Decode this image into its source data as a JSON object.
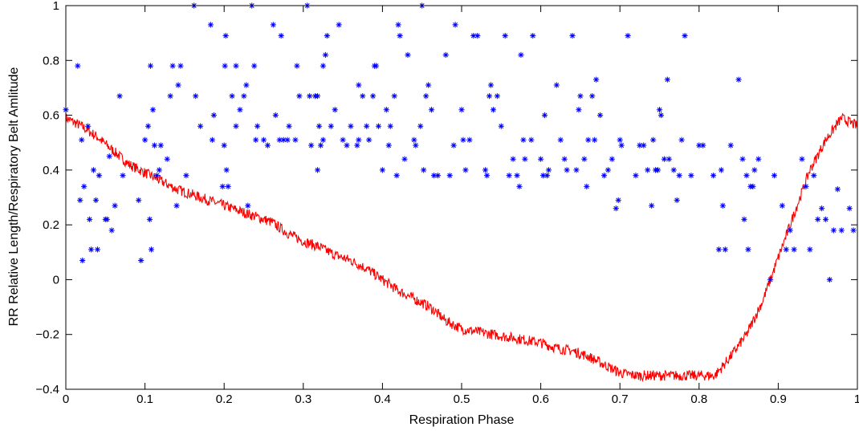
{
  "chart_data": {
    "type": "line+scatter",
    "title": "",
    "xlabel": "Respiration Phase",
    "ylabel": "RR Relative Length/Respiratory Belt Amlitude",
    "xlim": [
      0,
      1
    ],
    "ylim": [
      -0.4,
      1
    ],
    "xticks": [
      0,
      0.1,
      0.2,
      0.3,
      0.4,
      0.5,
      0.6,
      0.7,
      0.8,
      0.9,
      1
    ],
    "yticks": [
      -0.4,
      -0.2,
      0,
      0.2,
      0.4,
      0.6,
      0.8,
      1
    ],
    "xtick_labels": [
      "0",
      "0.1",
      "0.2",
      "0.3",
      "0.4",
      "0.5",
      "0.6",
      "0.7",
      "0.8",
      "0.9",
      "1"
    ],
    "ytick_labels": [
      "−0.4",
      "−0.2",
      "0",
      "0.2",
      "0.4",
      "0.6",
      "0.8",
      "1"
    ],
    "grid": false,
    "series": [
      {
        "kind": "line",
        "color": "#ff0000",
        "x": [
          0.0,
          0.02,
          0.04,
          0.06,
          0.08,
          0.1,
          0.12,
          0.14,
          0.16,
          0.18,
          0.2,
          0.22,
          0.24,
          0.26,
          0.28,
          0.3,
          0.32,
          0.34,
          0.36,
          0.38,
          0.4,
          0.42,
          0.44,
          0.46,
          0.48,
          0.5,
          0.52,
          0.54,
          0.56,
          0.58,
          0.6,
          0.62,
          0.64,
          0.66,
          0.68,
          0.7,
          0.72,
          0.74,
          0.76,
          0.78,
          0.8,
          0.82,
          0.84,
          0.86,
          0.88,
          0.9,
          0.92,
          0.94,
          0.96,
          0.98,
          1.0
        ],
        "y": [
          0.59,
          0.56,
          0.52,
          0.47,
          0.42,
          0.39,
          0.36,
          0.33,
          0.31,
          0.29,
          0.27,
          0.25,
          0.23,
          0.21,
          0.17,
          0.14,
          0.12,
          0.09,
          0.07,
          0.04,
          0.0,
          -0.04,
          -0.07,
          -0.1,
          -0.15,
          -0.18,
          -0.19,
          -0.2,
          -0.21,
          -0.22,
          -0.23,
          -0.25,
          -0.26,
          -0.28,
          -0.31,
          -0.34,
          -0.35,
          -0.35,
          -0.35,
          -0.35,
          -0.35,
          -0.35,
          -0.28,
          -0.2,
          -0.08,
          0.08,
          0.24,
          0.4,
          0.51,
          0.59,
          0.56
        ]
      },
      {
        "kind": "scatter",
        "marker": "*",
        "color": "#0000ff",
        "points": [
          [
            0.0,
            0.62
          ],
          [
            0.015,
            0.78
          ],
          [
            0.018,
            0.29
          ],
          [
            0.02,
            0.51
          ],
          [
            0.021,
            0.07
          ],
          [
            0.023,
            0.34
          ],
          [
            0.028,
            0.56
          ],
          [
            0.03,
            0.22
          ],
          [
            0.032,
            0.11
          ],
          [
            0.035,
            0.4
          ],
          [
            0.038,
            0.29
          ],
          [
            0.04,
            0.11
          ],
          [
            0.042,
            0.38
          ],
          [
            0.05,
            0.22
          ],
          [
            0.052,
            0.22
          ],
          [
            0.055,
            0.45
          ],
          [
            0.058,
            0.18
          ],
          [
            0.062,
            0.27
          ],
          [
            0.068,
            0.67
          ],
          [
            0.072,
            0.38
          ],
          [
            0.092,
            0.29
          ],
          [
            0.095,
            0.07
          ],
          [
            0.1,
            0.51
          ],
          [
            0.104,
            0.56
          ],
          [
            0.106,
            0.22
          ],
          [
            0.107,
            0.78
          ],
          [
            0.108,
            0.11
          ],
          [
            0.11,
            0.62
          ],
          [
            0.112,
            0.49
          ],
          [
            0.115,
            0.38
          ],
          [
            0.118,
            0.4
          ],
          [
            0.12,
            0.49
          ],
          [
            0.128,
            0.44
          ],
          [
            0.132,
            0.67
          ],
          [
            0.135,
            0.78
          ],
          [
            0.14,
            0.27
          ],
          [
            0.142,
            0.71
          ],
          [
            0.145,
            0.78
          ],
          [
            0.152,
            0.38
          ],
          [
            0.162,
            1.0
          ],
          [
            0.164,
            0.67
          ],
          [
            0.17,
            0.56
          ],
          [
            0.183,
            0.93
          ],
          [
            0.185,
            0.51
          ],
          [
            0.187,
            0.6
          ],
          [
            0.198,
            0.34
          ],
          [
            0.2,
            0.49
          ],
          [
            0.201,
            0.78
          ],
          [
            0.202,
            0.89
          ],
          [
            0.203,
            0.4
          ],
          [
            0.205,
            0.34
          ],
          [
            0.21,
            0.67
          ],
          [
            0.215,
            0.78
          ],
          [
            0.215,
            0.56
          ],
          [
            0.22,
            0.62
          ],
          [
            0.225,
            0.67
          ],
          [
            0.228,
            0.71
          ],
          [
            0.23,
            0.27
          ],
          [
            0.235,
            1.0
          ],
          [
            0.238,
            0.78
          ],
          [
            0.24,
            0.51
          ],
          [
            0.242,
            0.56
          ],
          [
            0.25,
            0.51
          ],
          [
            0.255,
            0.49
          ],
          [
            0.262,
            0.93
          ],
          [
            0.265,
            0.6
          ],
          [
            0.27,
            0.51
          ],
          [
            0.272,
            0.89
          ],
          [
            0.275,
            0.51
          ],
          [
            0.28,
            0.51
          ],
          [
            0.282,
            0.56
          ],
          [
            0.29,
            0.51
          ],
          [
            0.292,
            0.78
          ],
          [
            0.295,
            0.67
          ],
          [
            0.305,
            1.0
          ],
          [
            0.308,
            0.67
          ],
          [
            0.31,
            0.49
          ],
          [
            0.315,
            0.67
          ],
          [
            0.318,
            0.67
          ],
          [
            0.318,
            0.4
          ],
          [
            0.32,
            0.56
          ],
          [
            0.322,
            0.49
          ],
          [
            0.325,
            0.51
          ],
          [
            0.325,
            0.78
          ],
          [
            0.328,
            0.82
          ],
          [
            0.33,
            0.89
          ],
          [
            0.335,
            0.56
          ],
          [
            0.34,
            0.62
          ],
          [
            0.345,
            0.93
          ],
          [
            0.35,
            0.51
          ],
          [
            0.355,
            0.49
          ],
          [
            0.36,
            0.56
          ],
          [
            0.368,
            0.49
          ],
          [
            0.37,
            0.71
          ],
          [
            0.37,
            0.51
          ],
          [
            0.375,
            0.67
          ],
          [
            0.38,
            0.56
          ],
          [
            0.383,
            0.51
          ],
          [
            0.388,
            0.67
          ],
          [
            0.39,
            0.78
          ],
          [
            0.392,
            0.78
          ],
          [
            0.395,
            0.56
          ],
          [
            0.4,
            0.4
          ],
          [
            0.405,
            0.62
          ],
          [
            0.408,
            0.49
          ],
          [
            0.41,
            0.56
          ],
          [
            0.415,
            0.67
          ],
          [
            0.418,
            0.38
          ],
          [
            0.42,
            0.93
          ],
          [
            0.422,
            0.89
          ],
          [
            0.428,
            0.44
          ],
          [
            0.432,
            0.82
          ],
          [
            0.44,
            0.51
          ],
          [
            0.442,
            0.49
          ],
          [
            0.448,
            0.56
          ],
          [
            0.45,
            1.0
          ],
          [
            0.452,
            0.4
          ],
          [
            0.455,
            0.67
          ],
          [
            0.458,
            0.71
          ],
          [
            0.462,
            0.62
          ],
          [
            0.465,
            0.38
          ],
          [
            0.47,
            0.38
          ],
          [
            0.48,
            0.82
          ],
          [
            0.485,
            0.38
          ],
          [
            0.49,
            0.49
          ],
          [
            0.492,
            0.93
          ],
          [
            0.5,
            0.62
          ],
          [
            0.502,
            0.51
          ],
          [
            0.505,
            0.4
          ],
          [
            0.51,
            0.51
          ],
          [
            0.515,
            0.89
          ],
          [
            0.52,
            0.89
          ],
          [
            0.53,
            0.4
          ],
          [
            0.532,
            0.38
          ],
          [
            0.535,
            0.67
          ],
          [
            0.537,
            0.71
          ],
          [
            0.54,
            0.62
          ],
          [
            0.545,
            0.67
          ],
          [
            0.55,
            0.56
          ],
          [
            0.555,
            0.89
          ],
          [
            0.56,
            0.38
          ],
          [
            0.565,
            0.44
          ],
          [
            0.57,
            0.38
          ],
          [
            0.573,
            0.34
          ],
          [
            0.575,
            0.82
          ],
          [
            0.578,
            0.51
          ],
          [
            0.58,
            0.44
          ],
          [
            0.588,
            0.51
          ],
          [
            0.59,
            0.89
          ],
          [
            0.6,
            0.44
          ],
          [
            0.603,
            0.38
          ],
          [
            0.605,
            0.6
          ],
          [
            0.608,
            0.38
          ],
          [
            0.61,
            0.4
          ],
          [
            0.62,
            0.71
          ],
          [
            0.625,
            0.51
          ],
          [
            0.63,
            0.44
          ],
          [
            0.633,
            0.4
          ],
          [
            0.64,
            0.89
          ],
          [
            0.645,
            0.4
          ],
          [
            0.648,
            0.62
          ],
          [
            0.65,
            0.67
          ],
          [
            0.655,
            0.44
          ],
          [
            0.658,
            0.34
          ],
          [
            0.66,
            0.51
          ],
          [
            0.665,
            0.67
          ],
          [
            0.668,
            0.51
          ],
          [
            0.67,
            0.73
          ],
          [
            0.675,
            0.6
          ],
          [
            0.68,
            0.38
          ],
          [
            0.685,
            0.4
          ],
          [
            0.69,
            0.44
          ],
          [
            0.695,
            0.26
          ],
          [
            0.698,
            0.29
          ],
          [
            0.7,
            0.51
          ],
          [
            0.702,
            0.49
          ],
          [
            0.71,
            0.89
          ],
          [
            0.72,
            0.38
          ],
          [
            0.725,
            0.49
          ],
          [
            0.73,
            0.49
          ],
          [
            0.735,
            0.4
          ],
          [
            0.74,
            0.27
          ],
          [
            0.742,
            0.51
          ],
          [
            0.745,
            0.4
          ],
          [
            0.748,
            0.4
          ],
          [
            0.75,
            0.62
          ],
          [
            0.752,
            0.6
          ],
          [
            0.756,
            0.44
          ],
          [
            0.76,
            0.73
          ],
          [
            0.762,
            0.44
          ],
          [
            0.768,
            0.4
          ],
          [
            0.772,
            0.29
          ],
          [
            0.775,
            0.38
          ],
          [
            0.778,
            0.51
          ],
          [
            0.782,
            0.89
          ],
          [
            0.79,
            0.38
          ],
          [
            0.8,
            0.49
          ],
          [
            0.805,
            0.49
          ],
          [
            0.818,
            0.38
          ],
          [
            0.825,
            0.11
          ],
          [
            0.828,
            0.4
          ],
          [
            0.83,
            0.27
          ],
          [
            0.833,
            0.11
          ],
          [
            0.84,
            0.49
          ],
          [
            0.85,
            0.73
          ],
          [
            0.855,
            0.44
          ],
          [
            0.857,
            0.22
          ],
          [
            0.86,
            0.38
          ],
          [
            0.862,
            0.11
          ],
          [
            0.865,
            0.34
          ],
          [
            0.868,
            0.34
          ],
          [
            0.87,
            0.4
          ],
          [
            0.875,
            0.44
          ],
          [
            0.89,
            0.0
          ],
          [
            0.895,
            0.38
          ],
          [
            0.905,
            0.27
          ],
          [
            0.91,
            0.11
          ],
          [
            0.915,
            0.18
          ],
          [
            0.92,
            0.11
          ],
          [
            0.93,
            0.44
          ],
          [
            0.935,
            0.34
          ],
          [
            0.94,
            0.11
          ],
          [
            0.945,
            0.38
          ],
          [
            0.95,
            0.22
          ],
          [
            0.955,
            0.26
          ],
          [
            0.96,
            0.22
          ],
          [
            0.965,
            0.0
          ],
          [
            0.97,
            0.18
          ],
          [
            0.975,
            0.33
          ],
          [
            0.98,
            0.18
          ],
          [
            0.99,
            0.26
          ],
          [
            0.995,
            0.18
          ]
        ]
      }
    ]
  }
}
